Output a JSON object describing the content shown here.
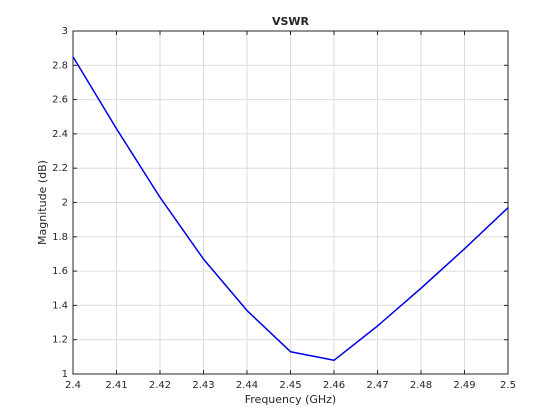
{
  "chart_data": {
    "type": "line",
    "title": "VSWR",
    "xlabel": "Frequency (GHz)",
    "ylabel": "Magnitude (dB)",
    "x": [
      2.4,
      2.41,
      2.42,
      2.43,
      2.44,
      2.45,
      2.46,
      2.47,
      2.48,
      2.49,
      2.5
    ],
    "values": [
      2.85,
      2.43,
      2.03,
      1.67,
      1.37,
      1.13,
      1.08,
      1.28,
      1.5,
      1.73,
      1.97
    ],
    "color": "#0000e6",
    "xlim": [
      2.4,
      2.5
    ],
    "xticks": [
      2.4,
      2.41,
      2.42,
      2.43,
      2.44,
      2.45,
      2.46,
      2.47,
      2.48,
      2.49,
      2.5
    ],
    "ylim": [
      1,
      3
    ],
    "yticks": [
      1,
      1.2,
      1.4,
      1.6,
      1.8,
      2,
      2.2,
      2.4,
      2.6,
      2.8,
      3
    ],
    "grid": true
  }
}
